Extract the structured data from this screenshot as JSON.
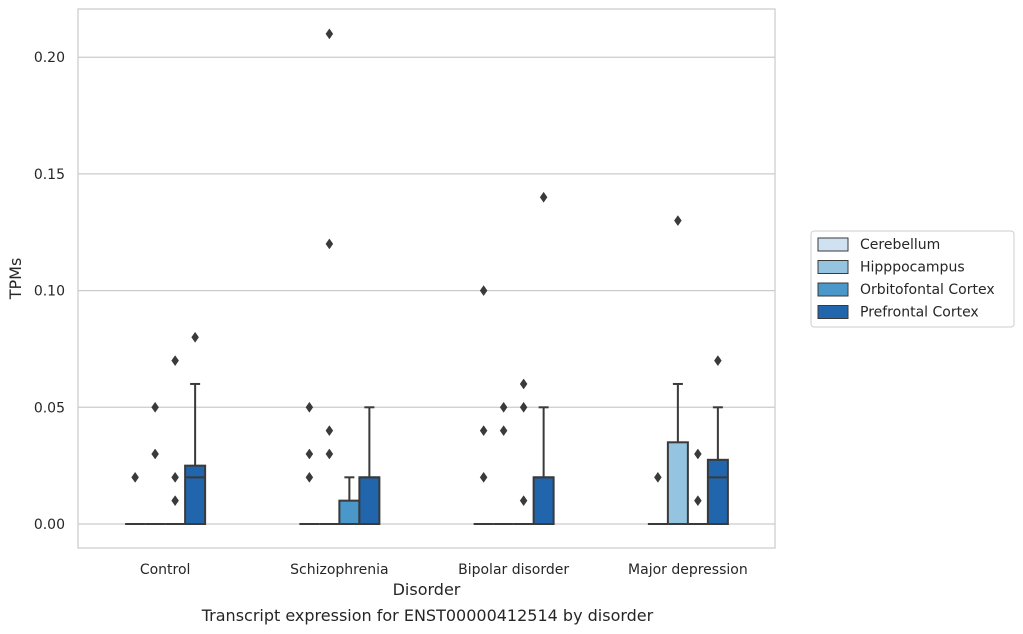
{
  "caption": "Transcript expression for ENST00000412514 by disorder",
  "chart_data": {
    "type": "box",
    "xlabel": "Disorder",
    "ylabel": "TPMs",
    "categories": [
      "Control",
      "Schizophrenia",
      "Bipolar disorder",
      "Major depression"
    ],
    "ylim": [
      -0.01,
      0.22
    ],
    "yticks": [
      0.0,
      0.05,
      0.1,
      0.15,
      0.2
    ],
    "ytick_labels": [
      "0.00",
      "0.05",
      "0.10",
      "0.15",
      "0.20"
    ],
    "grid": true,
    "legend_position": "right",
    "series": [
      {
        "name": "Cerebellum",
        "color": "#d0e1f2",
        "boxes": [
          {
            "q1": 0,
            "median": 0,
            "q3": 0,
            "whisker_low": 0,
            "whisker_high": 0,
            "outliers": [
              0.02
            ]
          },
          {
            "q1": 0,
            "median": 0,
            "q3": 0,
            "whisker_low": 0,
            "whisker_high": 0,
            "outliers": [
              0.02,
              0.03,
              0.05
            ]
          },
          {
            "q1": 0,
            "median": 0,
            "q3": 0,
            "whisker_low": 0,
            "whisker_high": 0,
            "outliers": [
              0.02,
              0.04,
              0.1
            ]
          },
          {
            "q1": 0,
            "median": 0,
            "q3": 0,
            "whisker_low": 0,
            "whisker_high": 0,
            "outliers": [
              0.02
            ]
          }
        ]
      },
      {
        "name": "Hipppocampus",
        "color": "#94c4df",
        "boxes": [
          {
            "q1": 0,
            "median": 0,
            "q3": 0,
            "whisker_low": 0,
            "whisker_high": 0,
            "outliers": [
              0.03,
              0.05
            ]
          },
          {
            "q1": 0,
            "median": 0,
            "q3": 0,
            "whisker_low": 0,
            "whisker_high": 0,
            "outliers": [
              0.03,
              0.04,
              0.12,
              0.21
            ]
          },
          {
            "q1": 0,
            "median": 0,
            "q3": 0,
            "whisker_low": 0,
            "whisker_high": 0,
            "outliers": [
              0.04,
              0.05
            ]
          },
          {
            "q1": 0,
            "median": 0,
            "q3": 0.035,
            "whisker_low": 0,
            "whisker_high": 0.06,
            "outliers": [
              0.13
            ]
          }
        ]
      },
      {
        "name": "Orbitofontal Cortex",
        "color": "#4a98c9",
        "boxes": [
          {
            "q1": 0,
            "median": 0,
            "q3": 0,
            "whisker_low": 0,
            "whisker_high": 0,
            "outliers": [
              0.01,
              0.02,
              0.07
            ]
          },
          {
            "q1": 0,
            "median": 0,
            "q3": 0.01,
            "whisker_low": 0,
            "whisker_high": 0.02,
            "outliers": []
          },
          {
            "q1": 0,
            "median": 0,
            "q3": 0,
            "whisker_low": 0,
            "whisker_high": 0,
            "outliers": [
              0.01,
              0.05,
              0.06
            ]
          },
          {
            "q1": 0,
            "median": 0,
            "q3": 0,
            "whisker_low": 0,
            "whisker_high": 0,
            "outliers": [
              0.01,
              0.03
            ]
          }
        ]
      },
      {
        "name": "Prefrontal Cortex",
        "color": "#2165ac",
        "boxes": [
          {
            "q1": 0,
            "median": 0.02,
            "q3": 0.025,
            "whisker_low": 0,
            "whisker_high": 0.06,
            "outliers": [
              0.08
            ]
          },
          {
            "q1": 0,
            "median": 0.02,
            "q3": 0.02,
            "whisker_low": 0,
            "whisker_high": 0.05,
            "outliers": []
          },
          {
            "q1": 0,
            "median": 0.02,
            "q3": 0.02,
            "whisker_low": 0,
            "whisker_high": 0.05,
            "outliers": [
              0.14
            ]
          },
          {
            "q1": 0,
            "median": 0.02,
            "q3": 0.0275,
            "whisker_low": 0,
            "whisker_high": 0.05,
            "outliers": [
              0.07
            ]
          }
        ]
      }
    ]
  }
}
